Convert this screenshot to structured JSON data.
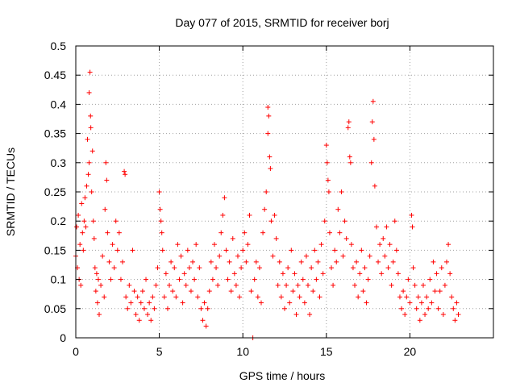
{
  "chart_data": {
    "type": "scatter",
    "title": "Day 077 of 2015, SRMTID for receiver borj",
    "xlabel": "GPS time / hours",
    "ylabel": "SRMTID / TECUs",
    "xlim": [
      0,
      25
    ],
    "ylim": [
      0,
      0.5
    ],
    "x_ticks": [
      0,
      5,
      10,
      15,
      20
    ],
    "x_tick_labels": [
      "0",
      "5",
      "10",
      "15",
      "20"
    ],
    "y_ticks": [
      0,
      0.05,
      0.1,
      0.15,
      0.2,
      0.25,
      0.3,
      0.35,
      0.4,
      0.45,
      0.5
    ],
    "y_tick_labels": [
      "0",
      "0.05",
      "0.1",
      "0.15",
      "0.2",
      "0.25",
      "0.3",
      "0.35",
      "0.4",
      "0.45",
      "0.5"
    ],
    "grid": true,
    "marker": "+",
    "series": [
      {
        "name": "SRMTID",
        "color": "#ff0000",
        "points": [
          [
            0.0,
            0.14
          ],
          [
            0.05,
            0.19
          ],
          [
            0.1,
            0.12
          ],
          [
            0.15,
            0.21
          ],
          [
            0.2,
            0.1
          ],
          [
            0.25,
            0.16
          ],
          [
            0.3,
            0.09
          ],
          [
            0.35,
            0.23
          ],
          [
            0.4,
            0.18
          ],
          [
            0.45,
            0.15
          ],
          [
            0.5,
            0.2
          ],
          [
            0.55,
            0.24
          ],
          [
            0.6,
            0.19
          ],
          [
            0.65,
            0.26
          ],
          [
            0.7,
            0.34
          ],
          [
            0.75,
            0.28
          ],
          [
            0.8,
            0.3
          ],
          [
            0.8,
            0.42
          ],
          [
            0.85,
            0.455
          ],
          [
            0.88,
            0.38
          ],
          [
            0.9,
            0.36
          ],
          [
            0.95,
            0.25
          ],
          [
            1.0,
            0.32
          ],
          [
            1.05,
            0.2
          ],
          [
            1.1,
            0.17
          ],
          [
            1.15,
            0.12
          ],
          [
            1.2,
            0.08
          ],
          [
            1.25,
            0.11
          ],
          [
            1.3,
            0.06
          ],
          [
            1.35,
            0.1
          ],
          [
            1.4,
            0.04
          ],
          [
            1.5,
            0.09
          ],
          [
            1.6,
            0.14
          ],
          [
            1.7,
            0.07
          ],
          [
            1.75,
            0.22
          ],
          [
            1.8,
            0.3
          ],
          [
            1.85,
            0.27
          ],
          [
            1.9,
            0.18
          ],
          [
            2.0,
            0.13
          ],
          [
            2.1,
            0.1
          ],
          [
            2.2,
            0.16
          ],
          [
            2.3,
            0.12
          ],
          [
            2.4,
            0.2
          ],
          [
            2.5,
            0.15
          ],
          [
            2.6,
            0.18
          ],
          [
            2.7,
            0.1
          ],
          [
            2.8,
            0.13
          ],
          [
            2.9,
            0.285
          ],
          [
            2.95,
            0.28
          ],
          [
            3.0,
            0.07
          ],
          [
            3.1,
            0.05
          ],
          [
            3.2,
            0.09
          ],
          [
            3.3,
            0.06
          ],
          [
            3.4,
            0.15
          ],
          [
            3.5,
            0.08
          ],
          [
            3.6,
            0.04
          ],
          [
            3.7,
            0.07
          ],
          [
            3.8,
            0.03
          ],
          [
            3.9,
            0.06
          ],
          [
            4.0,
            0.08
          ],
          [
            4.1,
            0.05
          ],
          [
            4.2,
            0.1
          ],
          [
            4.3,
            0.04
          ],
          [
            4.4,
            0.06
          ],
          [
            4.5,
            0.03
          ],
          [
            4.6,
            0.07
          ],
          [
            4.7,
            0.05
          ],
          [
            4.8,
            0.09
          ],
          [
            4.9,
            0.12
          ],
          [
            5.0,
            0.25
          ],
          [
            5.05,
            0.22
          ],
          [
            5.1,
            0.2
          ],
          [
            5.15,
            0.18
          ],
          [
            5.2,
            0.15
          ],
          [
            5.3,
            0.07
          ],
          [
            5.4,
            0.11
          ],
          [
            5.5,
            0.05
          ],
          [
            5.6,
            0.09
          ],
          [
            5.7,
            0.13
          ],
          [
            5.8,
            0.08
          ],
          [
            5.9,
            0.12
          ],
          [
            6.0,
            0.07
          ],
          [
            6.1,
            0.16
          ],
          [
            6.2,
            0.1
          ],
          [
            6.3,
            0.14
          ],
          [
            6.4,
            0.06
          ],
          [
            6.5,
            0.11
          ],
          [
            6.6,
            0.09
          ],
          [
            6.7,
            0.15
          ],
          [
            6.8,
            0.12
          ],
          [
            6.9,
            0.08
          ],
          [
            7.0,
            0.13
          ],
          [
            7.1,
            0.1
          ],
          [
            7.2,
            0.16
          ],
          [
            7.3,
            0.07
          ],
          [
            7.4,
            0.12
          ],
          [
            7.5,
            0.05
          ],
          [
            7.6,
            0.03
          ],
          [
            7.7,
            0.06
          ],
          [
            7.8,
            0.02
          ],
          [
            7.9,
            0.05
          ],
          [
            8.0,
            0.08
          ],
          [
            8.1,
            0.13
          ],
          [
            8.2,
            0.1
          ],
          [
            8.3,
            0.16
          ],
          [
            8.4,
            0.12
          ],
          [
            8.5,
            0.09
          ],
          [
            8.6,
            0.14
          ],
          [
            8.7,
            0.18
          ],
          [
            8.8,
            0.21
          ],
          [
            8.9,
            0.24
          ],
          [
            9.0,
            0.15
          ],
          [
            9.1,
            0.1
          ],
          [
            9.2,
            0.13
          ],
          [
            9.3,
            0.08
          ],
          [
            9.4,
            0.17
          ],
          [
            9.5,
            0.11
          ],
          [
            9.6,
            0.09
          ],
          [
            9.7,
            0.14
          ],
          [
            9.8,
            0.07
          ],
          [
            9.9,
            0.12
          ],
          [
            10.0,
            0.15
          ],
          [
            10.1,
            0.18
          ],
          [
            10.2,
            0.13
          ],
          [
            10.3,
            0.16
          ],
          [
            10.4,
            0.21
          ],
          [
            10.5,
            0.08
          ],
          [
            10.6,
            0.0
          ],
          [
            10.7,
            0.1
          ],
          [
            10.8,
            0.13
          ],
          [
            10.9,
            0.07
          ],
          [
            11.0,
            0.12
          ],
          [
            11.1,
            0.06
          ],
          [
            11.2,
            0.18
          ],
          [
            11.3,
            0.22
          ],
          [
            11.4,
            0.25
          ],
          [
            11.5,
            0.35
          ],
          [
            11.5,
            0.395
          ],
          [
            11.55,
            0.38
          ],
          [
            11.6,
            0.31
          ],
          [
            11.65,
            0.29
          ],
          [
            11.7,
            0.2
          ],
          [
            11.8,
            0.14
          ],
          [
            11.9,
            0.21
          ],
          [
            12.0,
            0.17
          ],
          [
            12.1,
            0.09
          ],
          [
            12.2,
            0.13
          ],
          [
            12.3,
            0.07
          ],
          [
            12.4,
            0.11
          ],
          [
            12.5,
            0.05
          ],
          [
            12.6,
            0.09
          ],
          [
            12.7,
            0.12
          ],
          [
            12.8,
            0.06
          ],
          [
            12.9,
            0.15
          ],
          [
            13.0,
            0.08
          ],
          [
            13.1,
            0.11
          ],
          [
            13.2,
            0.04
          ],
          [
            13.3,
            0.09
          ],
          [
            13.4,
            0.07
          ],
          [
            13.5,
            0.13
          ],
          [
            13.6,
            0.1
          ],
          [
            13.7,
            0.06
          ],
          [
            13.8,
            0.14
          ],
          [
            13.9,
            0.09
          ],
          [
            14.0,
            0.04
          ],
          [
            14.1,
            0.12
          ],
          [
            14.2,
            0.08
          ],
          [
            14.3,
            0.15
          ],
          [
            14.4,
            0.1
          ],
          [
            14.5,
            0.13
          ],
          [
            14.6,
            0.07
          ],
          [
            14.7,
            0.16
          ],
          [
            14.8,
            0.11
          ],
          [
            14.9,
            0.2
          ],
          [
            15.0,
            0.33
          ],
          [
            15.05,
            0.3
          ],
          [
            15.1,
            0.27
          ],
          [
            15.15,
            0.25
          ],
          [
            15.2,
            0.18
          ],
          [
            15.3,
            0.12
          ],
          [
            15.4,
            0.09
          ],
          [
            15.5,
            0.15
          ],
          [
            15.6,
            0.13
          ],
          [
            15.7,
            0.22
          ],
          [
            15.8,
            0.18
          ],
          [
            15.9,
            0.25
          ],
          [
            16.0,
            0.14
          ],
          [
            16.1,
            0.2
          ],
          [
            16.2,
            0.17
          ],
          [
            16.3,
            0.36
          ],
          [
            16.35,
            0.37
          ],
          [
            16.4,
            0.31
          ],
          [
            16.45,
            0.3
          ],
          [
            16.5,
            0.16
          ],
          [
            16.6,
            0.12
          ],
          [
            16.7,
            0.09
          ],
          [
            16.8,
            0.13
          ],
          [
            16.9,
            0.07
          ],
          [
            17.0,
            0.11
          ],
          [
            17.1,
            0.15
          ],
          [
            17.2,
            0.08
          ],
          [
            17.3,
            0.12
          ],
          [
            17.4,
            0.06
          ],
          [
            17.5,
            0.1
          ],
          [
            17.6,
            0.14
          ],
          [
            17.7,
            0.3
          ],
          [
            17.75,
            0.37
          ],
          [
            17.8,
            0.405
          ],
          [
            17.85,
            0.34
          ],
          [
            17.9,
            0.26
          ],
          [
            18.0,
            0.19
          ],
          [
            18.1,
            0.13
          ],
          [
            18.2,
            0.16
          ],
          [
            18.3,
            0.11
          ],
          [
            18.4,
            0.17
          ],
          [
            18.5,
            0.14
          ],
          [
            18.6,
            0.19
          ],
          [
            18.7,
            0.12
          ],
          [
            18.8,
            0.16
          ],
          [
            18.9,
            0.09
          ],
          [
            19.0,
            0.13
          ],
          [
            19.1,
            0.2
          ],
          [
            19.2,
            0.15
          ],
          [
            19.3,
            0.11
          ],
          [
            19.4,
            0.07
          ],
          [
            19.5,
            0.05
          ],
          [
            19.6,
            0.08
          ],
          [
            19.7,
            0.04
          ],
          [
            19.8,
            0.07
          ],
          [
            19.9,
            0.1
          ],
          [
            20.0,
            0.06
          ],
          [
            20.1,
            0.21
          ],
          [
            20.15,
            0.19
          ],
          [
            20.2,
            0.12
          ],
          [
            20.3,
            0.09
          ],
          [
            20.4,
            0.05
          ],
          [
            20.5,
            0.07
          ],
          [
            20.6,
            0.03
          ],
          [
            20.7,
            0.06
          ],
          [
            20.8,
            0.09
          ],
          [
            20.9,
            0.04
          ],
          [
            21.0,
            0.07
          ],
          [
            21.1,
            0.05
          ],
          [
            21.2,
            0.1
          ],
          [
            21.3,
            0.06
          ],
          [
            21.4,
            0.13
          ],
          [
            21.5,
            0.08
          ],
          [
            21.6,
            0.11
          ],
          [
            21.7,
            0.05
          ],
          [
            21.8,
            0.08
          ],
          [
            21.9,
            0.12
          ],
          [
            22.0,
            0.04
          ],
          [
            22.1,
            0.09
          ],
          [
            22.2,
            0.13
          ],
          [
            22.3,
            0.16
          ],
          [
            22.4,
            0.11
          ],
          [
            22.5,
            0.07
          ],
          [
            22.6,
            0.05
          ],
          [
            22.7,
            0.03
          ],
          [
            22.8,
            0.06
          ],
          [
            22.9,
            0.04
          ]
        ]
      }
    ]
  }
}
